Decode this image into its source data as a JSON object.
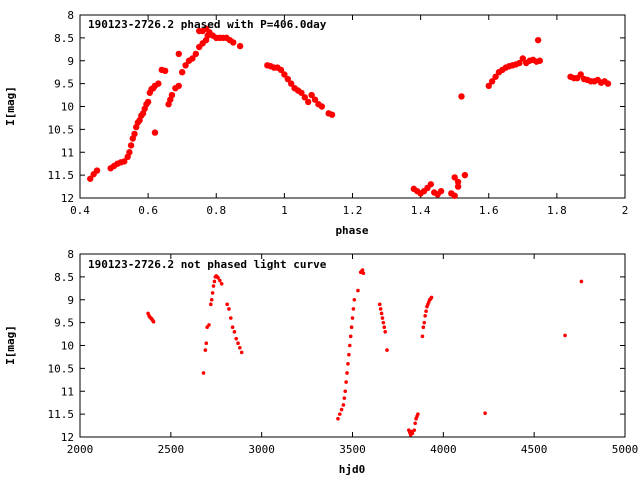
{
  "chart_data": [
    {
      "type": "scatter",
      "title": "190123-2726.2 phased with P=406.0day",
      "xlabel": "phase",
      "ylabel": "I[mag]",
      "xlim": [
        0.4,
        2.0
      ],
      "ylim": [
        8,
        12
      ],
      "y_inverted": true,
      "grid": false,
      "marker_color": "#ff0000",
      "marker": "asterisk",
      "xticks": [
        "0.4",
        "0.6",
        "0.8",
        "1",
        "1.2",
        "1.4",
        "1.6",
        "1.8",
        "2"
      ],
      "xtick_values": [
        0.4,
        0.6,
        0.8,
        1.0,
        1.2,
        1.4,
        1.6,
        1.8,
        2.0
      ],
      "yticks": [
        "8",
        "8.5",
        "9",
        "9.5",
        "10",
        "10.5",
        "11",
        "11.5",
        "12"
      ],
      "ytick_values": [
        8,
        8.5,
        9,
        9.5,
        10,
        10.5,
        11,
        11.5,
        12
      ],
      "points": [
        [
          0.43,
          11.58
        ],
        [
          0.44,
          11.48
        ],
        [
          0.45,
          11.4
        ],
        [
          0.49,
          11.35
        ],
        [
          0.5,
          11.3
        ],
        [
          0.51,
          11.25
        ],
        [
          0.52,
          11.22
        ],
        [
          0.53,
          11.2
        ],
        [
          0.54,
          11.1
        ],
        [
          0.545,
          11.0
        ],
        [
          0.55,
          10.85
        ],
        [
          0.555,
          10.7
        ],
        [
          0.56,
          10.6
        ],
        [
          0.565,
          10.45
        ],
        [
          0.57,
          10.35
        ],
        [
          0.575,
          10.3
        ],
        [
          0.58,
          10.2
        ],
        [
          0.585,
          10.15
        ],
        [
          0.59,
          10.05
        ],
        [
          0.595,
          9.95
        ],
        [
          0.6,
          9.9
        ],
        [
          0.605,
          9.7
        ],
        [
          0.61,
          9.62
        ],
        [
          0.615,
          9.6
        ],
        [
          0.62,
          9.55
        ],
        [
          0.63,
          9.5
        ],
        [
          0.64,
          9.2
        ],
        [
          0.65,
          9.22
        ],
        [
          0.66,
          9.95
        ],
        [
          0.665,
          9.85
        ],
        [
          0.67,
          9.75
        ],
        [
          0.68,
          9.6
        ],
        [
          0.69,
          9.55
        ],
        [
          0.7,
          9.25
        ],
        [
          0.71,
          9.1
        ],
        [
          0.72,
          9.0
        ],
        [
          0.73,
          8.95
        ],
        [
          0.74,
          8.85
        ],
        [
          0.75,
          8.7
        ],
        [
          0.76,
          8.62
        ],
        [
          0.77,
          8.55
        ],
        [
          0.775,
          8.45
        ],
        [
          0.62,
          10.57
        ],
        [
          0.69,
          8.85
        ],
        [
          0.75,
          8.35
        ],
        [
          0.76,
          8.35
        ],
        [
          0.77,
          8.3
        ],
        [
          0.78,
          8.38
        ],
        [
          0.79,
          8.45
        ],
        [
          0.8,
          8.5
        ],
        [
          0.81,
          8.5
        ],
        [
          0.82,
          8.5
        ],
        [
          0.83,
          8.5
        ],
        [
          0.84,
          8.55
        ],
        [
          0.85,
          8.6
        ],
        [
          0.87,
          8.68
        ],
        [
          0.95,
          9.1
        ],
        [
          0.96,
          9.12
        ],
        [
          0.97,
          9.15
        ],
        [
          0.98,
          9.15
        ],
        [
          0.99,
          9.2
        ],
        [
          1.0,
          9.3
        ],
        [
          1.01,
          9.4
        ],
        [
          1.02,
          9.5
        ],
        [
          1.03,
          9.6
        ],
        [
          1.04,
          9.65
        ],
        [
          1.05,
          9.7
        ],
        [
          1.06,
          9.8
        ],
        [
          1.07,
          9.9
        ],
        [
          1.08,
          9.75
        ],
        [
          1.09,
          9.85
        ],
        [
          1.1,
          9.95
        ],
        [
          1.11,
          10.0
        ],
        [
          1.13,
          10.15
        ],
        [
          1.14,
          10.18
        ],
        [
          1.38,
          11.8
        ],
        [
          1.39,
          11.85
        ],
        [
          1.4,
          11.9
        ],
        [
          1.41,
          11.85
        ],
        [
          1.42,
          11.78
        ],
        [
          1.43,
          11.7
        ],
        [
          1.44,
          11.88
        ],
        [
          1.45,
          11.92
        ],
        [
          1.46,
          11.85
        ],
        [
          1.49,
          11.9
        ],
        [
          1.5,
          11.95
        ],
        [
          1.51,
          11.75
        ],
        [
          1.5,
          11.55
        ],
        [
          1.51,
          11.65
        ],
        [
          1.53,
          11.5
        ],
        [
          1.52,
          9.78
        ],
        [
          1.6,
          9.55
        ],
        [
          1.61,
          9.45
        ],
        [
          1.62,
          9.35
        ],
        [
          1.63,
          9.25
        ],
        [
          1.64,
          9.2
        ],
        [
          1.65,
          9.15
        ],
        [
          1.66,
          9.12
        ],
        [
          1.67,
          9.1
        ],
        [
          1.68,
          9.08
        ],
        [
          1.69,
          9.05
        ],
        [
          1.7,
          8.95
        ],
        [
          1.71,
          9.05
        ],
        [
          1.72,
          9.0
        ],
        [
          1.73,
          8.98
        ],
        [
          1.74,
          9.02
        ],
        [
          1.75,
          9.0
        ],
        [
          1.745,
          8.55
        ],
        [
          1.84,
          9.35
        ],
        [
          1.85,
          9.38
        ],
        [
          1.86,
          9.38
        ],
        [
          1.87,
          9.3
        ],
        [
          1.88,
          9.4
        ],
        [
          1.89,
          9.42
        ],
        [
          1.9,
          9.45
        ],
        [
          1.91,
          9.45
        ],
        [
          1.92,
          9.42
        ],
        [
          1.93,
          9.48
        ],
        [
          1.94,
          9.45
        ],
        [
          1.95,
          9.5
        ]
      ]
    },
    {
      "type": "scatter",
      "title": "190123-2726.2 not phased light curve",
      "xlabel": "hjd0",
      "ylabel": "I[mag]",
      "xlim": [
        2000,
        5000
      ],
      "ylim": [
        8,
        12
      ],
      "y_inverted": true,
      "grid": false,
      "marker_color": "#ff0000",
      "marker": "dot",
      "xticks": [
        "2000",
        "2500",
        "3000",
        "3500",
        "4000",
        "4500",
        "5000"
      ],
      "xtick_values": [
        2000,
        2500,
        3000,
        3500,
        4000,
        4500,
        5000
      ],
      "yticks": [
        "8",
        "8.5",
        "9",
        "9.5",
        "10",
        "10.5",
        "11",
        "11.5",
        "12"
      ],
      "ytick_values": [
        8,
        8.5,
        9,
        9.5,
        10,
        10.5,
        11,
        11.5,
        12
      ],
      "points": [
        [
          2375,
          9.3
        ],
        [
          2380,
          9.35
        ],
        [
          2385,
          9.38
        ],
        [
          2390,
          9.4
        ],
        [
          2395,
          9.42
        ],
        [
          2400,
          9.45
        ],
        [
          2405,
          9.48
        ],
        [
          2680,
          10.6
        ],
        [
          2690,
          10.1
        ],
        [
          2695,
          9.95
        ],
        [
          2700,
          9.6
        ],
        [
          2710,
          9.55
        ],
        [
          2720,
          9.1
        ],
        [
          2725,
          9.0
        ],
        [
          2730,
          8.85
        ],
        [
          2735,
          8.7
        ],
        [
          2740,
          8.6
        ],
        [
          2745,
          8.5
        ],
        [
          2750,
          8.48
        ],
        [
          2755,
          8.5
        ],
        [
          2760,
          8.52
        ],
        [
          2770,
          8.58
        ],
        [
          2780,
          8.65
        ],
        [
          2810,
          9.1
        ],
        [
          2820,
          9.2
        ],
        [
          2830,
          9.4
        ],
        [
          2840,
          9.6
        ],
        [
          2850,
          9.7
        ],
        [
          2860,
          9.85
        ],
        [
          2870,
          9.95
        ],
        [
          2880,
          10.05
        ],
        [
          2890,
          10.15
        ],
        [
          3420,
          11.6
        ],
        [
          3430,
          11.5
        ],
        [
          3440,
          11.4
        ],
        [
          3450,
          11.3
        ],
        [
          3455,
          11.15
        ],
        [
          3460,
          11.0
        ],
        [
          3465,
          10.8
        ],
        [
          3470,
          10.6
        ],
        [
          3475,
          10.4
        ],
        [
          3480,
          10.2
        ],
        [
          3485,
          10.0
        ],
        [
          3490,
          9.8
        ],
        [
          3495,
          9.6
        ],
        [
          3500,
          9.4
        ],
        [
          3505,
          9.2
        ],
        [
          3510,
          9.0
        ],
        [
          3530,
          8.8
        ],
        [
          3545,
          8.4
        ],
        [
          3550,
          8.38
        ],
        [
          3555,
          8.35
        ],
        [
          3560,
          8.42
        ],
        [
          3650,
          9.1
        ],
        [
          3655,
          9.2
        ],
        [
          3660,
          9.3
        ],
        [
          3665,
          9.4
        ],
        [
          3670,
          9.5
        ],
        [
          3675,
          9.6
        ],
        [
          3680,
          9.7
        ],
        [
          3690,
          10.1
        ],
        [
          3810,
          11.85
        ],
        [
          3815,
          11.9
        ],
        [
          3820,
          11.95
        ],
        [
          3825,
          11.88
        ],
        [
          3830,
          11.92
        ],
        [
          3840,
          11.85
        ],
        [
          3845,
          11.7
        ],
        [
          3850,
          11.6
        ],
        [
          3855,
          11.55
        ],
        [
          3860,
          11.5
        ],
        [
          3885,
          9.8
        ],
        [
          3890,
          9.6
        ],
        [
          3895,
          9.5
        ],
        [
          3900,
          9.35
        ],
        [
          3905,
          9.25
        ],
        [
          3910,
          9.15
        ],
        [
          3915,
          9.1
        ],
        [
          3920,
          9.05
        ],
        [
          3925,
          9.0
        ],
        [
          3930,
          8.98
        ],
        [
          3935,
          8.95
        ],
        [
          4230,
          11.48
        ],
        [
          4670,
          9.78
        ],
        [
          4760,
          8.6
        ]
      ]
    }
  ]
}
